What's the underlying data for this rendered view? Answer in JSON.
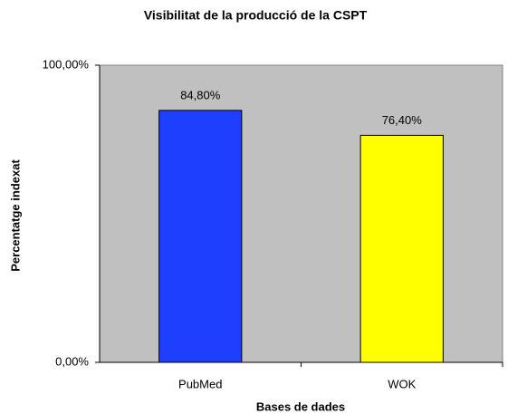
{
  "chart_data": {
    "type": "bar",
    "title": "Visibilitat de la producció de la CSPT",
    "xlabel": "Bases de dades",
    "ylabel": "Percentatge indexat",
    "categories": [
      "PubMed",
      "WOK"
    ],
    "values": [
      84.8,
      76.4
    ],
    "value_labels": [
      "84,80%",
      "76,40%"
    ],
    "colors": [
      "#1f3fff",
      "#ffff00"
    ],
    "ylim": [
      0,
      100
    ],
    "yticks": [
      {
        "value": 0,
        "label": "0,00%"
      },
      {
        "value": 100,
        "label": "100,00%"
      }
    ],
    "grid": false
  }
}
